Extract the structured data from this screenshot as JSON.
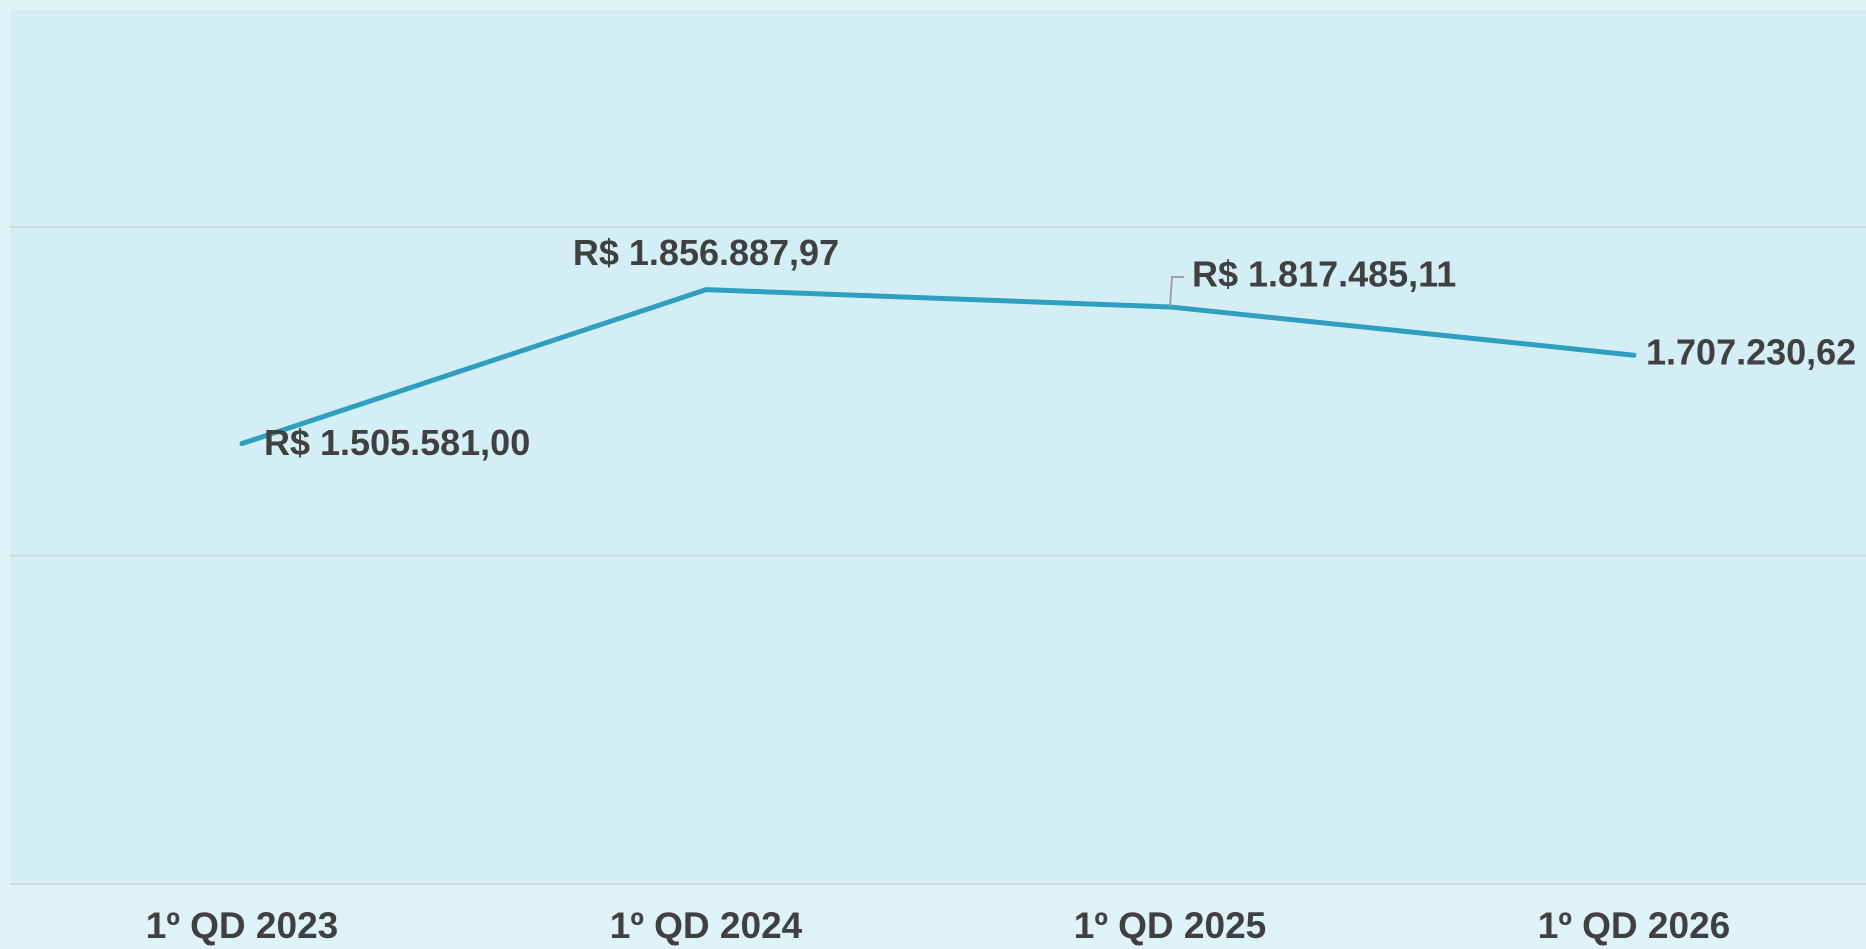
{
  "chart_data": {
    "type": "line",
    "categories": [
      "1º QD 2023",
      "1º QD 2024",
      "1º QD 2025",
      "1º QD 2026"
    ],
    "series": [
      {
        "name": null,
        "color": "#2e9fbe",
        "values": [
          1505581.0,
          1856887.97,
          1817485.11,
          1707230.62
        ],
        "value_labels": [
          "R$ 1.505.581,00",
          "R$ 1.856.887,97",
          "R$ 1.817.485,11",
          "1.707.230,62"
        ]
      }
    ],
    "ylim": [
      500000,
      2500000
    ],
    "yticks": [
      500000,
      1250000,
      2000000
    ],
    "grid": true
  }
}
